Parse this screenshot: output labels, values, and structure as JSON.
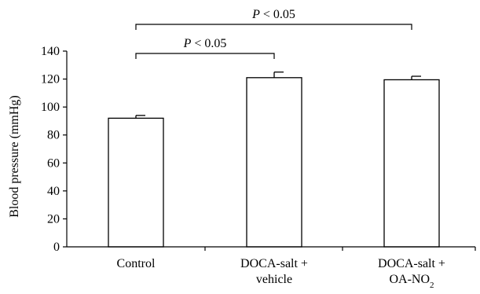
{
  "chart_data": {
    "type": "bar",
    "title": "",
    "xlabel": "",
    "ylabel": "Blood pressure (mmHg)",
    "ylim": [
      0,
      140
    ],
    "yticks": [
      0,
      20,
      40,
      60,
      80,
      100,
      120,
      140
    ],
    "grid": false,
    "categories": [
      {
        "lines": [
          "Control"
        ],
        "sub": ""
      },
      {
        "lines": [
          "DOCA-salt +",
          "vehicle"
        ],
        "sub": ""
      },
      {
        "lines": [
          "DOCA-salt +",
          "OA-NO"
        ],
        "sub": "2"
      }
    ],
    "values": [
      92,
      121,
      119.5
    ],
    "errors": [
      2,
      4,
      2.5
    ],
    "bar_fill": "#ffffff",
    "bar_stroke": "#000000",
    "significance": [
      {
        "from": 0,
        "to": 1,
        "p_symbol": "P",
        "text": " < 0.05"
      },
      {
        "from": 0,
        "to": 2,
        "p_symbol": "P",
        "text": " < 0.05"
      }
    ]
  }
}
